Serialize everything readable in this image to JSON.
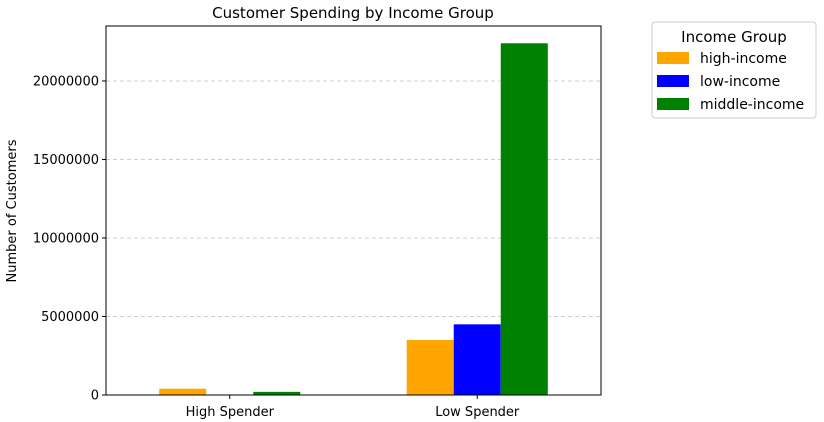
{
  "chart_data": {
    "type": "bar",
    "title": "Customer Spending by Income Group",
    "xlabel": "",
    "ylabel": "Number of Customers",
    "categories": [
      "High Spender",
      "Low Spender"
    ],
    "series": [
      {
        "name": "high-income",
        "color": "#ffa500",
        "values": [
          400000,
          3500000
        ]
      },
      {
        "name": "low-income",
        "color": "#0000ff",
        "values": [
          0,
          4500000
        ]
      },
      {
        "name": "middle-income",
        "color": "#008000",
        "values": [
          200000,
          22400000
        ]
      }
    ],
    "yticks": [
      0,
      5000000,
      10000000,
      15000000,
      20000000
    ],
    "ytick_labels": [
      "0",
      "5000000",
      "10000000",
      "15000000",
      "20000000"
    ],
    "ylim": [
      0,
      23500000
    ],
    "grid": "y-dashed",
    "legend": {
      "title": "Income Group",
      "placement": "outside-top-right"
    }
  }
}
